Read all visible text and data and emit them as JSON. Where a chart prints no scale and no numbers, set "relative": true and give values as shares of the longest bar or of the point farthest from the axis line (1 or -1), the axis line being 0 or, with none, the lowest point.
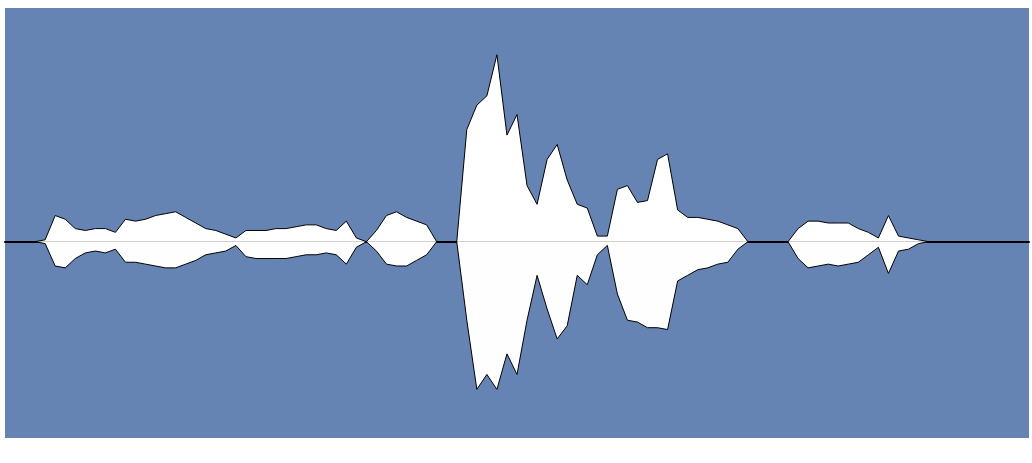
{
  "chart_data": {
    "type": "area",
    "relative": true,
    "grid": false,
    "marker": "none",
    "categories": [
      null,
      null,
      null,
      null,
      null,
      null,
      null,
      null,
      null,
      null,
      null,
      null,
      null,
      null,
      null,
      null,
      null,
      null,
      null,
      null,
      null,
      null,
      null,
      null,
      null,
      null,
      null,
      null,
      null,
      null,
      null,
      null,
      null,
      null,
      null,
      null,
      null,
      null,
      null,
      null,
      null,
      null,
      null,
      null,
      null,
      null,
      null,
      null,
      null,
      null,
      null,
      null,
      null,
      null,
      null,
      null,
      null,
      null,
      null,
      null,
      null,
      null,
      null,
      null,
      null,
      null,
      null,
      null,
      null,
      null,
      null,
      null,
      null,
      null,
      null,
      null,
      null,
      null,
      null,
      null,
      null,
      null,
      null,
      null,
      null,
      null,
      null,
      null,
      null,
      null,
      null,
      null,
      null,
      null,
      null,
      null,
      null,
      null,
      null,
      null,
      null,
      null,
      null
    ],
    "series": [
      {
        "color": "#ffffff",
        "values": [
          0,
          0,
          0,
          0,
          0.01,
          0.14,
          0.12,
          0.07,
          0.06,
          0.07,
          0.07,
          0.05,
          0.12,
          0.11,
          0.12,
          0.14,
          0.15,
          0.16,
          0.13,
          0.1,
          0.07,
          0.06,
          0.04,
          0.02,
          0.06,
          0.06,
          0.06,
          0.07,
          0.07,
          0.08,
          0.09,
          0.09,
          0.07,
          0.06,
          0.11,
          0.02,
          0,
          0.06,
          0.14,
          0.16,
          0.13,
          0.11,
          0.09,
          0,
          0,
          0,
          0.6,
          0.73,
          0.78,
          1,
          0.57,
          0.68,
          0.3,
          0.2,
          0.44,
          0.52,
          0.33,
          0.2,
          0.18,
          0.03,
          0.03,
          0.28,
          0.3,
          0.21,
          0.22,
          0.44,
          0.47,
          0.17,
          0.13,
          0.13,
          0.12,
          0.11,
          0.09,
          0.07,
          0,
          0,
          0,
          0,
          0,
          0.07,
          0.11,
          0.11,
          0.1,
          0.1,
          0.1,
          0.07,
          0.05,
          0.02,
          0.14,
          0.03,
          0.02,
          0.01,
          0,
          0,
          0,
          0,
          0,
          0,
          0,
          0,
          0,
          0,
          0
        ]
      },
      {
        "color": "#fefefe",
        "values": [
          0,
          0,
          0,
          0,
          -0.01,
          -0.13,
          -0.14,
          -0.09,
          -0.06,
          -0.05,
          -0.06,
          -0.04,
          -0.11,
          -0.11,
          -0.12,
          -0.13,
          -0.14,
          -0.14,
          -0.12,
          -0.1,
          -0.07,
          -0.06,
          -0.05,
          -0.02,
          -0.08,
          -0.09,
          -0.09,
          -0.09,
          -0.09,
          -0.08,
          -0.07,
          -0.07,
          -0.06,
          -0.07,
          -0.12,
          -0.03,
          0,
          -0.05,
          -0.12,
          -0.13,
          -0.13,
          -0.1,
          -0.07,
          0,
          0,
          0,
          -0.42,
          -0.79,
          -0.71,
          -0.79,
          -0.6,
          -0.71,
          -0.42,
          -0.18,
          -0.36,
          -0.52,
          -0.45,
          -0.18,
          -0.23,
          -0.07,
          -0.02,
          -0.28,
          -0.42,
          -0.43,
          -0.46,
          -0.46,
          -0.47,
          -0.21,
          -0.18,
          -0.15,
          -0.14,
          -0.12,
          -0.11,
          -0.04,
          0,
          0,
          0,
          0,
          0,
          -0.09,
          -0.14,
          -0.13,
          -0.12,
          -0.13,
          -0.12,
          -0.11,
          -0.07,
          -0.03,
          -0.17,
          -0.05,
          -0.04,
          -0.01,
          0,
          0,
          0,
          0,
          0,
          0,
          0,
          0,
          0,
          0,
          0
        ]
      }
    ]
  }
}
